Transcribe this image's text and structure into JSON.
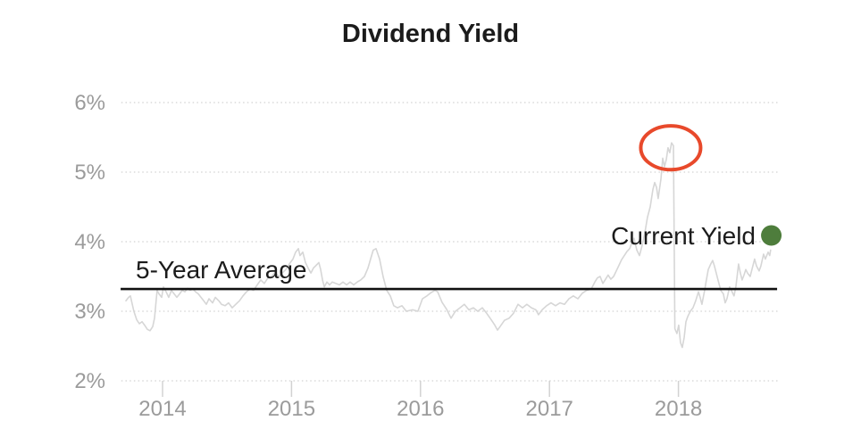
{
  "page": {
    "background": "#ffffff"
  },
  "chart_data": {
    "type": "line",
    "title": "Dividend Yield",
    "xlabel": "",
    "ylabel": "",
    "x_ticks": [
      2014,
      2015,
      2016,
      2017,
      2018
    ],
    "x_tick_labels": [
      "2014",
      "2015",
      "2016",
      "2017",
      "2018"
    ],
    "y_ticks": [
      2,
      3,
      4,
      5,
      6
    ],
    "y_tick_labels": [
      "2%",
      "3%",
      "4%",
      "5%",
      "6%"
    ],
    "ylim": [
      2,
      6
    ],
    "xlim": [
      2013.68,
      2018.77
    ],
    "grid": "horizontal-dotted",
    "legend_position": "none",
    "colors": {
      "series_line": "#d6d6d6",
      "average_line": "#111111",
      "highlight_ellipse": "#e8492b",
      "current_yield_marker": "#4e7d3c",
      "tick_text": "#9b9b9b",
      "title_text": "#1b1b1b"
    },
    "series": [
      {
        "name": "Dividend Yield",
        "color": "#d6d6d6",
        "points": [
          [
            2013.716,
            3.15
          ],
          [
            2013.737,
            3.2
          ],
          [
            2013.751,
            3.22
          ],
          [
            2013.765,
            3.1
          ],
          [
            2013.778,
            3.0
          ],
          [
            2013.799,
            2.88
          ],
          [
            2013.82,
            2.82
          ],
          [
            2013.841,
            2.85
          ],
          [
            2013.861,
            2.8
          ],
          [
            2013.882,
            2.74
          ],
          [
            2013.903,
            2.72
          ],
          [
            2013.924,
            2.78
          ],
          [
            2013.938,
            2.9
          ],
          [
            2013.958,
            3.3
          ],
          [
            2013.972,
            3.25
          ],
          [
            2013.993,
            3.2
          ],
          [
            2014.007,
            3.35
          ],
          [
            2014.028,
            3.28
          ],
          [
            2014.048,
            3.2
          ],
          [
            2014.069,
            3.3
          ],
          [
            2014.09,
            3.25
          ],
          [
            2014.111,
            3.2
          ],
          [
            2014.132,
            3.25
          ],
          [
            2014.152,
            3.3
          ],
          [
            2014.173,
            3.28
          ],
          [
            2014.194,
            3.33
          ],
          [
            2014.215,
            3.3
          ],
          [
            2014.235,
            3.32
          ],
          [
            2014.256,
            3.28
          ],
          [
            2014.277,
            3.25
          ],
          [
            2014.298,
            3.2
          ],
          [
            2014.319,
            3.15
          ],
          [
            2014.339,
            3.1
          ],
          [
            2014.36,
            3.18
          ],
          [
            2014.388,
            3.12
          ],
          [
            2014.409,
            3.2
          ],
          [
            2014.436,
            3.15
          ],
          [
            2014.457,
            3.1
          ],
          [
            2014.485,
            3.08
          ],
          [
            2014.512,
            3.12
          ],
          [
            2014.54,
            3.05
          ],
          [
            2014.568,
            3.1
          ],
          [
            2014.596,
            3.15
          ],
          [
            2014.623,
            3.22
          ],
          [
            2014.651,
            3.28
          ],
          [
            2014.679,
            3.32
          ],
          [
            2014.706,
            3.3
          ],
          [
            2014.734,
            3.38
          ],
          [
            2014.762,
            3.45
          ],
          [
            2014.789,
            3.4
          ],
          [
            2014.817,
            3.48
          ],
          [
            2014.845,
            3.5
          ],
          [
            2014.873,
            3.56
          ],
          [
            2014.9,
            3.5
          ],
          [
            2014.928,
            3.55
          ],
          [
            2014.956,
            3.6
          ],
          [
            2014.983,
            3.68
          ],
          [
            2015.011,
            3.75
          ],
          [
            2015.032,
            3.85
          ],
          [
            2015.053,
            3.9
          ],
          [
            2015.066,
            3.8
          ],
          [
            2015.087,
            3.85
          ],
          [
            2015.108,
            3.7
          ],
          [
            2015.129,
            3.62
          ],
          [
            2015.15,
            3.55
          ],
          [
            2015.17,
            3.62
          ],
          [
            2015.191,
            3.66
          ],
          [
            2015.212,
            3.7
          ],
          [
            2015.226,
            3.6
          ],
          [
            2015.24,
            3.45
          ],
          [
            2015.254,
            3.35
          ],
          [
            2015.274,
            3.42
          ],
          [
            2015.295,
            3.38
          ],
          [
            2015.316,
            3.42
          ],
          [
            2015.343,
            3.4
          ],
          [
            2015.371,
            3.38
          ],
          [
            2015.399,
            3.42
          ],
          [
            2015.427,
            3.38
          ],
          [
            2015.454,
            3.42
          ],
          [
            2015.482,
            3.38
          ],
          [
            2015.51,
            3.42
          ],
          [
            2015.537,
            3.45
          ],
          [
            2015.565,
            3.5
          ],
          [
            2015.593,
            3.62
          ],
          [
            2015.613,
            3.75
          ],
          [
            2015.634,
            3.88
          ],
          [
            2015.655,
            3.9
          ],
          [
            2015.683,
            3.75
          ],
          [
            2015.71,
            3.5
          ],
          [
            2015.738,
            3.3
          ],
          [
            2015.766,
            3.22
          ],
          [
            2015.793,
            3.08
          ],
          [
            2015.821,
            3.05
          ],
          [
            2015.856,
            3.08
          ],
          [
            2015.89,
            3.0
          ],
          [
            2015.939,
            3.02
          ],
          [
            2015.98,
            3.0
          ],
          [
            2016.015,
            3.18
          ],
          [
            2016.05,
            3.22
          ],
          [
            2016.084,
            3.27
          ],
          [
            2016.112,
            3.3
          ],
          [
            2016.133,
            3.28
          ],
          [
            2016.167,
            3.13
          ],
          [
            2016.202,
            3.03
          ],
          [
            2016.237,
            2.9
          ],
          [
            2016.271,
            3.0
          ],
          [
            2016.306,
            3.05
          ],
          [
            2016.34,
            3.1
          ],
          [
            2016.375,
            3.02
          ],
          [
            2016.41,
            3.05
          ],
          [
            2016.444,
            3.0
          ],
          [
            2016.479,
            3.05
          ],
          [
            2016.513,
            2.97
          ],
          [
            2016.548,
            2.88
          ],
          [
            2016.576,
            2.8
          ],
          [
            2016.597,
            2.73
          ],
          [
            2016.617,
            2.78
          ],
          [
            2016.652,
            2.87
          ],
          [
            2016.687,
            2.9
          ],
          [
            2016.721,
            2.97
          ],
          [
            2016.756,
            3.1
          ],
          [
            2016.791,
            3.05
          ],
          [
            2016.825,
            3.1
          ],
          [
            2016.86,
            3.05
          ],
          [
            2016.894,
            3.02
          ],
          [
            2016.915,
            2.95
          ],
          [
            2016.943,
            3.02
          ],
          [
            2016.978,
            3.08
          ],
          [
            2017.012,
            3.12
          ],
          [
            2017.047,
            3.08
          ],
          [
            2017.082,
            3.12
          ],
          [
            2017.116,
            3.1
          ],
          [
            2017.151,
            3.18
          ],
          [
            2017.185,
            3.22
          ],
          [
            2017.22,
            3.18
          ],
          [
            2017.255,
            3.26
          ],
          [
            2017.289,
            3.3
          ],
          [
            2017.324,
            3.32
          ],
          [
            2017.352,
            3.42
          ],
          [
            2017.372,
            3.48
          ],
          [
            2017.393,
            3.5
          ],
          [
            2017.414,
            3.4
          ],
          [
            2017.435,
            3.46
          ],
          [
            2017.455,
            3.52
          ],
          [
            2017.476,
            3.46
          ],
          [
            2017.497,
            3.5
          ],
          [
            2017.518,
            3.58
          ],
          [
            2017.539,
            3.66
          ],
          [
            2017.559,
            3.74
          ],
          [
            2017.58,
            3.8
          ],
          [
            2017.601,
            3.86
          ],
          [
            2017.622,
            3.9
          ],
          [
            2017.642,
            4.0
          ],
          [
            2017.656,
            4.05
          ],
          [
            2017.677,
            3.88
          ],
          [
            2017.698,
            3.8
          ],
          [
            2017.719,
            3.95
          ],
          [
            2017.739,
            4.12
          ],
          [
            2017.76,
            4.35
          ],
          [
            2017.781,
            4.5
          ],
          [
            2017.802,
            4.75
          ],
          [
            2017.816,
            4.85
          ],
          [
            2017.83,
            4.78
          ],
          [
            2017.843,
            4.62
          ],
          [
            2017.864,
            4.9
          ],
          [
            2017.878,
            5.2
          ],
          [
            2017.892,
            5.08
          ],
          [
            2017.906,
            5.18
          ],
          [
            2017.919,
            5.35
          ],
          [
            2017.933,
            5.28
          ],
          [
            2017.947,
            5.42
          ],
          [
            2017.961,
            5.38
          ],
          [
            2017.972,
            2.75
          ],
          [
            2017.988,
            2.68
          ],
          [
            2018.002,
            2.8
          ],
          [
            2018.016,
            2.55
          ],
          [
            2018.03,
            2.48
          ],
          [
            2018.044,
            2.62
          ],
          [
            2018.058,
            2.85
          ],
          [
            2018.071,
            2.92
          ],
          [
            2018.092,
            3.0
          ],
          [
            2018.113,
            3.05
          ],
          [
            2018.134,
            3.15
          ],
          [
            2018.155,
            3.28
          ],
          [
            2018.168,
            3.2
          ],
          [
            2018.182,
            3.1
          ],
          [
            2018.203,
            3.3
          ],
          [
            2018.217,
            3.45
          ],
          [
            2018.231,
            3.6
          ],
          [
            2018.251,
            3.68
          ],
          [
            2018.265,
            3.73
          ],
          [
            2018.279,
            3.65
          ],
          [
            2018.293,
            3.55
          ],
          [
            2018.307,
            3.45
          ],
          [
            2018.328,
            3.3
          ],
          [
            2018.348,
            3.25
          ],
          [
            2018.362,
            3.12
          ],
          [
            2018.376,
            3.18
          ],
          [
            2018.397,
            3.35
          ],
          [
            2018.411,
            3.3
          ],
          [
            2018.431,
            3.22
          ],
          [
            2018.445,
            3.35
          ],
          [
            2018.466,
            3.68
          ],
          [
            2018.48,
            3.55
          ],
          [
            2018.494,
            3.45
          ],
          [
            2018.508,
            3.52
          ],
          [
            2018.522,
            3.6
          ],
          [
            2018.535,
            3.55
          ],
          [
            2018.556,
            3.5
          ],
          [
            2018.57,
            3.6
          ],
          [
            2018.591,
            3.75
          ],
          [
            2018.605,
            3.65
          ],
          [
            2018.625,
            3.58
          ],
          [
            2018.639,
            3.65
          ],
          [
            2018.66,
            3.82
          ],
          [
            2018.674,
            3.75
          ],
          [
            2018.695,
            3.85
          ],
          [
            2018.708,
            3.8
          ],
          [
            2018.715,
            3.88
          ]
        ]
      }
    ],
    "average_line": {
      "label": "5-Year Average",
      "value": 3.32,
      "x_start": 2013.675,
      "x_end": 2018.765,
      "color": "#111111"
    },
    "current_yield": {
      "label": "Current Yield",
      "x": 2018.72,
      "y": 4.09,
      "marker_color": "#4e7d3c"
    },
    "highlight_ellipse": {
      "x": 2017.94,
      "y": 5.35,
      "rx": 0.232,
      "ry": 0.315,
      "color": "#e8492b"
    }
  }
}
